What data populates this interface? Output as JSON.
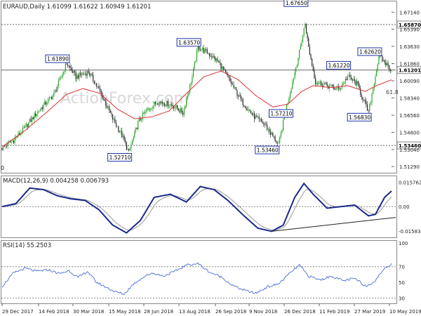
{
  "chart_data": [
    {
      "type": "candlestick",
      "title": "EURAUD,Daily  1.61099 1.61622 1.60949 1.61201",
      "watermark": "ActionForex.com",
      "x_ticks": [
        "29 Dec 2017",
        "14 Feb 2018",
        "30 Mar 2018",
        "15 May 2018",
        "28 Jun 2018",
        "13 Aug 2018",
        "26 Sep 2018",
        "9 Nov 2018",
        "26 Dec 2018",
        "11 Feb 2019",
        "27 Mar 2019",
        "10 May 2019"
      ],
      "y_ticks": [
        1.6714,
        1.6539,
        1.6363,
        1.6186,
        1.6009,
        1.5834,
        1.5656,
        1.548,
        1.5304,
        1.5129
      ],
      "y_tick_labels": [
        "1.67140",
        "1.65390",
        "1.63630",
        "1.61860",
        "1.60090",
        "1.58340",
        "1.56560",
        "1.54800",
        "1.53040",
        "1.51290"
      ],
      "ylim": [
        1.508,
        1.681
      ],
      "colors": {
        "up": "#22a322",
        "down": "#1f1f1f",
        "ma": "#e03030",
        "label_border": "#2233aa"
      },
      "price_levels": [
        {
          "label": "1.65870",
          "value": 1.6587,
          "style": "dashed"
        },
        {
          "label": "1.61201",
          "value": 1.61201,
          "style": "solid"
        },
        {
          "label": "1.53460",
          "value": 1.5346,
          "style": "dashed"
        }
      ],
      "annotations": [
        {
          "label": "1.67650",
          "x": 263,
          "y": 1.6765
        },
        {
          "label": "1.63570",
          "x": 170,
          "y": 1.6357
        },
        {
          "label": "1.61890",
          "x": 56,
          "y": 1.6189
        },
        {
          "label": "1.62620",
          "x": 327,
          "y": 1.6262
        },
        {
          "label": "1.61220",
          "x": 300,
          "y": 1.6122
        },
        {
          "label": "1.57210",
          "x": 250,
          "y": 1.5721
        },
        {
          "label": "1.56830",
          "x": 318,
          "y": 1.5683
        },
        {
          "label": "1.52710",
          "x": 110,
          "y": 1.5271
        },
        {
          "label": "1.53460",
          "x": 238,
          "y": 1.5346
        }
      ],
      "fib_label": "61.8",
      "edge_label": "0",
      "close_anchors": [
        [
          0,
          1.532
        ],
        [
          10,
          1.54
        ],
        [
          18,
          1.55
        ],
        [
          30,
          1.568
        ],
        [
          45,
          1.587
        ],
        [
          56,
          1.6189
        ],
        [
          64,
          1.605
        ],
        [
          75,
          1.61
        ],
        [
          85,
          1.59
        ],
        [
          96,
          1.562
        ],
        [
          104,
          1.545
        ],
        [
          110,
          1.5271
        ],
        [
          118,
          1.558
        ],
        [
          125,
          1.57
        ],
        [
          135,
          1.58
        ],
        [
          148,
          1.576
        ],
        [
          157,
          1.568
        ],
        [
          165,
          1.605
        ],
        [
          170,
          1.6357
        ],
        [
          178,
          1.63
        ],
        [
          188,
          1.62
        ],
        [
          198,
          1.6
        ],
        [
          208,
          1.58
        ],
        [
          218,
          1.565
        ],
        [
          228,
          1.556
        ],
        [
          235,
          1.544
        ],
        [
          240,
          1.5346
        ],
        [
          246,
          1.57
        ],
        [
          252,
          1.6
        ],
        [
          258,
          1.63
        ],
        [
          263,
          1.66
        ],
        [
          266,
          1.635
        ],
        [
          272,
          1.6
        ],
        [
          282,
          1.596
        ],
        [
          292,
          1.592
        ],
        [
          300,
          1.605
        ],
        [
          308,
          1.598
        ],
        [
          318,
          1.5683
        ],
        [
          323,
          1.6
        ],
        [
          327,
          1.6262
        ],
        [
          332,
          1.62
        ],
        [
          338,
          1.612
        ]
      ],
      "ma_anchors": [
        [
          0,
          1.533
        ],
        [
          20,
          1.55
        ],
        [
          40,
          1.57
        ],
        [
          56,
          1.587
        ],
        [
          70,
          1.593
        ],
        [
          85,
          1.588
        ],
        [
          100,
          1.572
        ],
        [
          115,
          1.562
        ],
        [
          130,
          1.564
        ],
        [
          145,
          1.57
        ],
        [
          160,
          1.588
        ],
        [
          175,
          1.605
        ],
        [
          190,
          1.611
        ],
        [
          205,
          1.602
        ],
        [
          220,
          1.586
        ],
        [
          235,
          1.574
        ],
        [
          248,
          1.577
        ],
        [
          260,
          1.59
        ],
        [
          270,
          1.596
        ],
        [
          285,
          1.594
        ],
        [
          300,
          1.596
        ],
        [
          315,
          1.59
        ],
        [
          325,
          1.596
        ],
        [
          338,
          1.602
        ]
      ]
    },
    {
      "type": "line",
      "title": "MACD(12,26,9) 0.004258 0.006793",
      "y_tick_labels": [
        "0.015762",
        "0.00",
        "-0.015834"
      ],
      "ylim": [
        -0.019,
        0.0192
      ],
      "zero": 0,
      "macd_anchors": [
        [
          0,
          0.0
        ],
        [
          12,
          0.002
        ],
        [
          24,
          0.012
        ],
        [
          36,
          0.011
        ],
        [
          48,
          0.007
        ],
        [
          60,
          0.005
        ],
        [
          72,
          0.004
        ],
        [
          84,
          -0.002
        ],
        [
          96,
          -0.012
        ],
        [
          108,
          -0.017
        ],
        [
          120,
          -0.009
        ],
        [
          132,
          0.006
        ],
        [
          146,
          0.008
        ],
        [
          160,
          0.003
        ],
        [
          172,
          0.013
        ],
        [
          184,
          0.011
        ],
        [
          196,
          0.004
        ],
        [
          210,
          -0.006
        ],
        [
          222,
          -0.014
        ],
        [
          234,
          -0.016
        ],
        [
          244,
          -0.012
        ],
        [
          254,
          0.006
        ],
        [
          262,
          0.015
        ],
        [
          270,
          0.008
        ],
        [
          282,
          -0.001
        ],
        [
          294,
          0.0
        ],
        [
          306,
          0.001
        ],
        [
          318,
          -0.006
        ],
        [
          324,
          -0.005
        ],
        [
          332,
          0.006
        ],
        [
          340,
          0.0115
        ],
        [
          346,
          0.009
        ],
        [
          350,
          0.005
        ]
      ],
      "trendline": [
        [
          234,
          -0.016
        ],
        [
          358,
          -0.007
        ]
      ]
    },
    {
      "type": "line",
      "title": "RSI(14) 55.2503",
      "y_tick_labels": [
        "100",
        "70",
        "50",
        "30"
      ],
      "ylim": [
        25,
        102
      ],
      "levels": [
        70,
        30
      ],
      "rsi_anchors": [
        [
          0,
          45
        ],
        [
          10,
          62
        ],
        [
          20,
          68
        ],
        [
          30,
          64
        ],
        [
          40,
          66
        ],
        [
          50,
          61
        ],
        [
          58,
          65
        ],
        [
          66,
          56
        ],
        [
          74,
          64
        ],
        [
          82,
          50
        ],
        [
          90,
          44
        ],
        [
          98,
          38
        ],
        [
          106,
          35
        ],
        [
          114,
          48
        ],
        [
          122,
          56
        ],
        [
          130,
          62
        ],
        [
          140,
          58
        ],
        [
          150,
          64
        ],
        [
          160,
          72
        ],
        [
          170,
          74
        ],
        [
          180,
          63
        ],
        [
          190,
          57
        ],
        [
          200,
          46
        ],
        [
          210,
          40
        ],
        [
          220,
          36
        ],
        [
          230,
          44
        ],
        [
          240,
          48
        ],
        [
          250,
          62
        ],
        [
          258,
          72
        ],
        [
          266,
          58
        ],
        [
          276,
          53
        ],
        [
          286,
          58
        ],
        [
          296,
          52
        ],
        [
          306,
          55
        ],
        [
          316,
          45
        ],
        [
          324,
          52
        ],
        [
          330,
          65
        ],
        [
          338,
          74
        ],
        [
          344,
          70
        ],
        [
          350,
          55
        ]
      ]
    }
  ]
}
